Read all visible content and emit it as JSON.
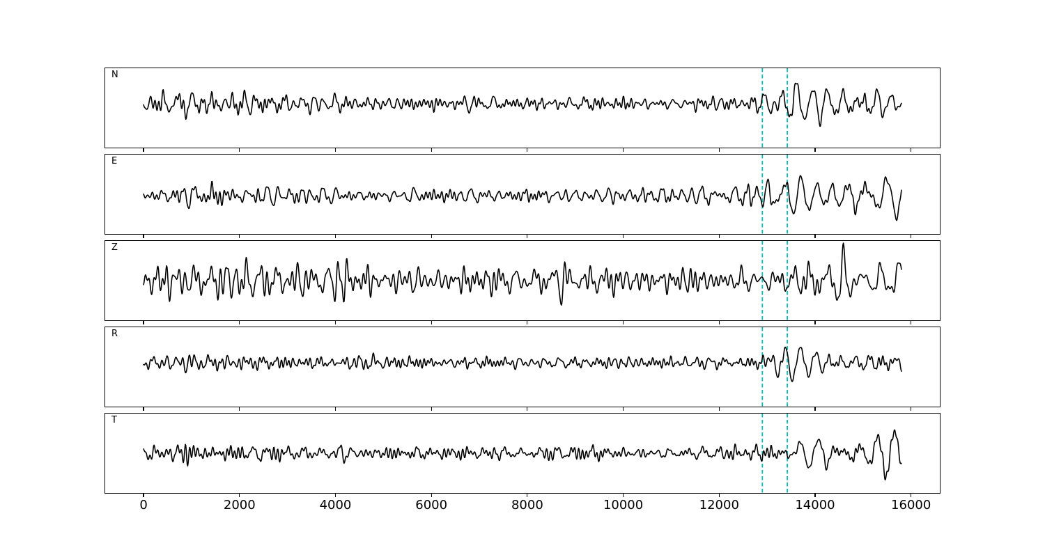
{
  "figure": {
    "background": "#ffffff",
    "frame_color": "#000000",
    "trace_color": "#000000",
    "trace_width": 1.6
  },
  "chart_data": {
    "type": "line",
    "description": "Five stacked seismogram traces (components N, E, Z, R, T) sharing one x-axis in samples; black waveforms with two vertical cyan dashed pick lines marking a phase-arrival window near x=12900 and x=13420; background noise precedes a higher-amplitude event coda.",
    "title": "",
    "xlabel": "",
    "ylabel": "",
    "xlim": [
      -800,
      16600
    ],
    "sample_range": [
      0,
      15800
    ],
    "grid": false,
    "legend": null,
    "x_ticks": [
      0,
      2000,
      4000,
      6000,
      8000,
      10000,
      12000,
      14000,
      16000
    ],
    "x_tick_labels": [
      "0",
      "2000",
      "4000",
      "6000",
      "8000",
      "10000",
      "12000",
      "14000",
      "16000"
    ],
    "pick_lines": {
      "x": [
        12900,
        13420
      ],
      "color": "#00bfbf",
      "style": "dashed",
      "width": 2
    },
    "panels": [
      {
        "label": "N",
        "seed": 101,
        "center_offset": -6,
        "event_period": [
          220,
          360
        ],
        "noise_env": [
          [
            0,
            13
          ],
          [
            300,
            17
          ],
          [
            700,
            21
          ],
          [
            1900,
            19
          ],
          [
            2800,
            15
          ],
          [
            5200,
            14
          ],
          [
            8000,
            13
          ],
          [
            10500,
            13
          ],
          [
            12500,
            14
          ],
          [
            15800,
            14
          ]
        ],
        "event_env": [
          [
            12820,
            0
          ],
          [
            12960,
            30
          ],
          [
            13200,
            36
          ],
          [
            13480,
            30
          ],
          [
            13660,
            52
          ],
          [
            13900,
            34
          ],
          [
            14500,
            30
          ],
          [
            15200,
            31
          ],
          [
            15800,
            25
          ]
        ]
      },
      {
        "label": "E",
        "seed": 202,
        "center_offset": 2,
        "event_period": [
          250,
          430
        ],
        "noise_env": [
          [
            0,
            14
          ],
          [
            600,
            20
          ],
          [
            1600,
            20
          ],
          [
            2800,
            17
          ],
          [
            4200,
            15
          ],
          [
            7000,
            14
          ],
          [
            10000,
            14
          ],
          [
            13000,
            15
          ],
          [
            15800,
            15
          ]
        ],
        "event_env": [
          [
            12820,
            0
          ],
          [
            13000,
            24
          ],
          [
            13400,
            32
          ],
          [
            14200,
            40
          ],
          [
            14700,
            36
          ],
          [
            15250,
            52
          ],
          [
            15600,
            48
          ],
          [
            15800,
            38
          ]
        ]
      },
      {
        "label": "Z",
        "seed": 303,
        "center_offset": 0,
        "event_period": [
          230,
          400
        ],
        "noise_env": [
          [
            0,
            26
          ],
          [
            400,
            38
          ],
          [
            900,
            48
          ],
          [
            1800,
            46
          ],
          [
            2900,
            40
          ],
          [
            4200,
            37
          ],
          [
            6500,
            35
          ],
          [
            9000,
            31
          ],
          [
            11500,
            29
          ],
          [
            14000,
            28
          ],
          [
            15800,
            28
          ]
        ],
        "event_env": [
          [
            13600,
            0
          ],
          [
            13950,
            32
          ],
          [
            14400,
            42
          ],
          [
            15000,
            36
          ],
          [
            15500,
            40
          ],
          [
            15800,
            36
          ]
        ]
      },
      {
        "label": "R",
        "seed": 404,
        "center_offset": -6,
        "event_period": [
          210,
          380
        ],
        "noise_env": [
          [
            0,
            11
          ],
          [
            600,
            16
          ],
          [
            1900,
            16
          ],
          [
            3100,
            13
          ],
          [
            6000,
            12
          ],
          [
            9500,
            11
          ],
          [
            12600,
            12
          ],
          [
            15800,
            12
          ]
        ],
        "event_env": [
          [
            12780,
            0
          ],
          [
            12920,
            32
          ],
          [
            13120,
            42
          ],
          [
            13380,
            32
          ],
          [
            13620,
            50
          ],
          [
            13880,
            34
          ],
          [
            14400,
            28
          ],
          [
            15100,
            29
          ],
          [
            15800,
            24
          ]
        ]
      },
      {
        "label": "T",
        "seed": 505,
        "center_offset": 0,
        "event_period": [
          300,
          500
        ],
        "noise_env": [
          [
            0,
            12
          ],
          [
            600,
            17
          ],
          [
            2100,
            16
          ],
          [
            3300,
            13
          ],
          [
            7000,
            12
          ],
          [
            10500,
            12
          ],
          [
            13300,
            13
          ],
          [
            15800,
            13
          ]
        ],
        "event_env": [
          [
            13450,
            0
          ],
          [
            13700,
            20
          ],
          [
            14050,
            34
          ],
          [
            14600,
            46
          ],
          [
            15000,
            42
          ],
          [
            15380,
            54
          ],
          [
            15650,
            50
          ],
          [
            15800,
            34
          ]
        ]
      }
    ]
  }
}
